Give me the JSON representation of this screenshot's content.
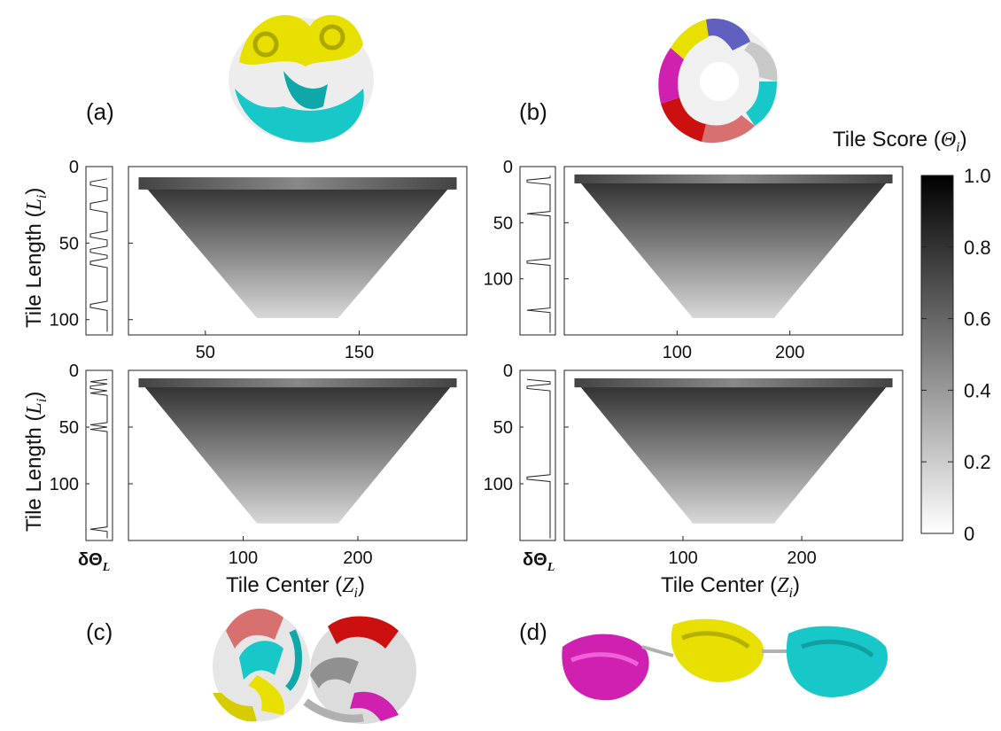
{
  "panel_labels": [
    "(a)",
    "(b)",
    "(c)",
    "(d)"
  ],
  "colorbar": {
    "title": "Tile Score (",
    "title_symbol": "Θ",
    "title_sub": "i",
    "ticks": [
      "1.0",
      "0.8",
      "0.6",
      "0.4",
      "0.2",
      "0"
    ]
  },
  "labels": {
    "y_axis": "Tile Length (",
    "y_axis_symbol": "L",
    "y_axis_sub": "i",
    "x_axis": "Tile Center (",
    "x_axis_symbol": "Z",
    "x_axis_sub": "i",
    "side_label": "δΘ",
    "side_label_sub": "L"
  },
  "colors": {
    "protein_yellow": "#e8e000",
    "protein_cyan": "#18c8c8",
    "protein_red": "#cc1010",
    "protein_magenta": "#d020b0",
    "protein_blue": "#6060c0",
    "protein_salmon": "#d87070",
    "protein_grey": "#c8c8c8"
  },
  "chart_data": [
    {
      "type": "heatmap",
      "panel": "a",
      "xlabel": "Tile Center (Z_i)",
      "ylabel": "Tile Length (L_i)",
      "xlim": [
        0,
        220
      ],
      "ylim": [
        110,
        0
      ],
      "xticks": [
        "50",
        "150"
      ],
      "xtick_values": [
        50,
        150
      ],
      "yticks": [
        "0",
        "50",
        "100"
      ],
      "ytick_values": [
        0,
        50,
        100
      ],
      "value_range": [
        0,
        1
      ],
      "side_profile_spikes": [
        10,
        12,
        25,
        28,
        45,
        55,
        63,
        90,
        92
      ]
    },
    {
      "type": "heatmap",
      "panel": "b",
      "xlabel": "Tile Center (Z_i)",
      "ylabel": "Tile Length (L_i)",
      "xlim": [
        0,
        300
      ],
      "ylim": [
        150,
        0
      ],
      "xticks": [
        "100",
        "200"
      ],
      "xtick_values": [
        100,
        200
      ],
      "yticks": [
        "0",
        "50",
        "100"
      ],
      "ytick_values": [
        0,
        50,
        100
      ],
      "value_range": [
        0,
        1
      ],
      "side_profile_spikes": [
        13,
        42,
        85,
        128
      ]
    },
    {
      "type": "heatmap",
      "panel": "c",
      "xlabel": "Tile Center (Z_i)",
      "ylabel": "Tile Length (L_i)",
      "xlim": [
        0,
        295
      ],
      "ylim": [
        150,
        0
      ],
      "xticks": [
        "100",
        "200"
      ],
      "xtick_values": [
        100,
        200
      ],
      "yticks": [
        "0",
        "50",
        "100"
      ],
      "ytick_values": [
        0,
        50,
        100
      ],
      "value_range": [
        0,
        1
      ],
      "side_profile_spikes": [
        10,
        15,
        20,
        48,
        52,
        140
      ]
    },
    {
      "type": "heatmap",
      "panel": "d",
      "xlabel": "Tile Center (Z_i)",
      "ylabel": "Tile Length (L_i)",
      "xlim": [
        0,
        285
      ],
      "ylim": [
        150,
        0
      ],
      "xticks": [
        "100",
        "200"
      ],
      "xtick_values": [
        100,
        200
      ],
      "yticks": [
        "0",
        "50",
        "100"
      ],
      "ytick_values": [
        0,
        50,
        100
      ],
      "value_range": [
        0,
        1
      ],
      "side_profile_spikes": [
        8,
        15,
        95
      ]
    }
  ]
}
